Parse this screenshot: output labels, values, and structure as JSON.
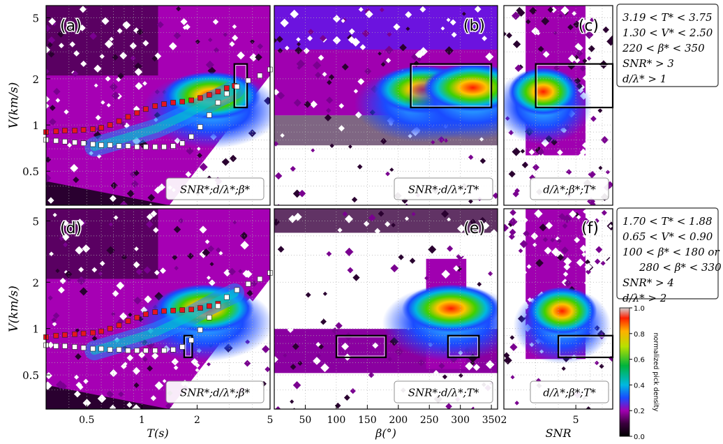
{
  "chart_data": {
    "type": "heatmap",
    "description_panels": [
      "(a)",
      "(b)",
      "(c)",
      "(d)",
      "(e)",
      "(f)"
    ],
    "ylabel": "V(km/s)",
    "xlabels": {
      "T": "T(s)",
      "beta": "β(°)",
      "snr": "SNR"
    },
    "y_ticks": [
      "5",
      "2",
      "1",
      "0.5"
    ],
    "x_ticks_T": [
      "0.5",
      "1",
      "2",
      "5"
    ],
    "x_ticks_beta": [
      "50",
      "100",
      "150",
      "200",
      "250",
      "300",
      "350"
    ],
    "x_ticks_snr": [
      "2",
      "5"
    ],
    "ylim": [
      0.3,
      6.0
    ],
    "xlim_T": [
      0.3,
      5.0
    ],
    "xlim_beta": [
      0,
      360
    ],
    "xlim_snr": [
      2,
      8
    ],
    "y_scale": "log",
    "T_scale": "log",
    "panel_labels": {
      "a": "(a)",
      "b": "(b)",
      "c": "(c)",
      "d": "(d)",
      "e": "(e)",
      "f": "(f)"
    },
    "panel_tags": {
      "a": "SNR*;d/λ*;β*",
      "b": "SNR*;d/λ*;T*",
      "c": "d/λ*;β*;T*",
      "d": "SNR*;d/λ*;β*",
      "e": "SNR*;d/λ*;T*",
      "f": "d/λ*;β*;T*"
    },
    "criteria_top": [
      "3.19 < T* < 3.75",
      "1.30 < V* < 2.50",
      "220 < β* < 350",
      "SNR* > 3",
      "d/λ* > 1"
    ],
    "criteria_bottom": [
      "1.70 < T* < 1.88",
      "0.65 < V* < 0.90",
      "100 < β* < 180 or",
      "280 < β* < 330",
      "SNR* > 4",
      "d/λ* > 2"
    ],
    "colorbar": {
      "label": "normalized pick density",
      "ticks": [
        "0.0",
        "0.2",
        "0.4",
        "0.6",
        "0.8",
        "1.0"
      ],
      "range": [
        0,
        1
      ]
    },
    "series": [
      {
        "panel": "a",
        "marker": "red-square",
        "x": [
          0.3,
          0.34,
          0.38,
          0.43,
          0.48,
          0.54,
          0.6,
          0.67,
          0.75,
          0.84,
          0.94,
          1.05,
          1.18,
          1.32,
          1.48,
          1.66,
          1.86,
          2.08,
          2.33,
          2.6,
          2.9,
          3.2
        ],
        "y": [
          0.9,
          0.91,
          0.92,
          0.92,
          0.93,
          0.94,
          0.96,
          1.0,
          1.06,
          1.13,
          1.2,
          1.27,
          1.33,
          1.37,
          1.4,
          1.42,
          1.45,
          1.5,
          1.57,
          1.65,
          1.74,
          1.8
        ]
      },
      {
        "panel": "a",
        "marker": "white-square",
        "x": [
          0.3,
          0.34,
          0.38,
          0.43,
          0.48,
          0.54,
          0.6,
          0.67,
          0.75,
          0.84,
          0.94,
          1.05,
          1.18,
          1.32,
          1.48,
          1.66,
          1.86,
          2.08,
          2.33,
          2.6,
          2.9,
          3.3,
          3.8,
          4.4,
          5.0
        ],
        "y": [
          0.8,
          0.79,
          0.78,
          0.77,
          0.76,
          0.75,
          0.74,
          0.74,
          0.73,
          0.73,
          0.72,
          0.72,
          0.72,
          0.72,
          0.73,
          0.76,
          0.84,
          0.97,
          1.16,
          1.4,
          1.6,
          1.78,
          1.95,
          2.1,
          2.3
        ]
      },
      {
        "panel": "d",
        "marker": "red-square",
        "x": [
          0.3,
          0.34,
          0.38,
          0.43,
          0.48,
          0.54,
          0.6,
          0.67,
          0.75,
          0.84,
          0.94,
          1.05,
          1.18,
          1.32,
          1.48,
          1.66,
          1.86,
          2.08,
          2.33,
          2.6
        ],
        "y": [
          0.88,
          0.9,
          0.91,
          0.92,
          0.93,
          0.94,
          0.96,
          1.0,
          1.05,
          1.12,
          1.18,
          1.24,
          1.28,
          1.3,
          1.31,
          1.32,
          1.33,
          1.36,
          1.4,
          1.45
        ]
      },
      {
        "panel": "d",
        "marker": "white-square",
        "x": [
          0.3,
          0.34,
          0.38,
          0.43,
          0.48,
          0.54,
          0.6,
          0.67,
          0.75,
          0.84,
          0.94,
          1.05,
          1.18,
          1.32,
          1.48,
          1.66,
          1.86,
          2.08,
          2.33,
          2.6,
          2.9,
          3.3,
          3.8,
          4.4,
          5.0
        ],
        "y": [
          0.78,
          0.77,
          0.77,
          0.76,
          0.75,
          0.74,
          0.74,
          0.73,
          0.73,
          0.72,
          0.72,
          0.72,
          0.72,
          0.72,
          0.73,
          0.76,
          0.84,
          0.98,
          1.18,
          1.4,
          1.6,
          1.78,
          1.95,
          2.1,
          2.3
        ]
      }
    ],
    "selection_boxes": [
      {
        "panel": "a",
        "x": [
          3.19,
          3.75
        ],
        "y": [
          1.3,
          2.5
        ]
      },
      {
        "panel": "b",
        "x": [
          220,
          350
        ],
        "y": [
          1.3,
          2.5
        ]
      },
      {
        "panel": "c",
        "x": [
          3,
          8
        ],
        "y": [
          1.3,
          2.5
        ]
      },
      {
        "panel": "d",
        "x": [
          1.7,
          1.88
        ],
        "y": [
          0.65,
          0.9
        ]
      },
      {
        "panel": "e",
        "x": [
          100,
          180
        ],
        "y": [
          0.65,
          0.9
        ]
      },
      {
        "panel": "e",
        "x": [
          280,
          330
        ],
        "y": [
          0.65,
          0.9
        ]
      },
      {
        "panel": "f",
        "x": [
          4,
          8
        ],
        "y": [
          0.65,
          0.9
        ]
      }
    ],
    "density_hotspots": [
      {
        "panel": "a",
        "x": 2.4,
        "y": 1.55,
        "value": 1.0
      },
      {
        "panel": "b",
        "x": 240,
        "y": 1.7,
        "value": 0.85
      },
      {
        "panel": "b",
        "x": 320,
        "y": 1.75,
        "value": 1.0
      },
      {
        "panel": "c",
        "x": 3.3,
        "y": 1.65,
        "value": 1.0
      },
      {
        "panel": "d",
        "x": 2.2,
        "y": 1.35,
        "value": 1.0
      },
      {
        "panel": "e",
        "x": 285,
        "y": 1.35,
        "value": 1.0
      },
      {
        "panel": "f",
        "x": 4.2,
        "y": 1.3,
        "value": 1.0
      }
    ]
  }
}
